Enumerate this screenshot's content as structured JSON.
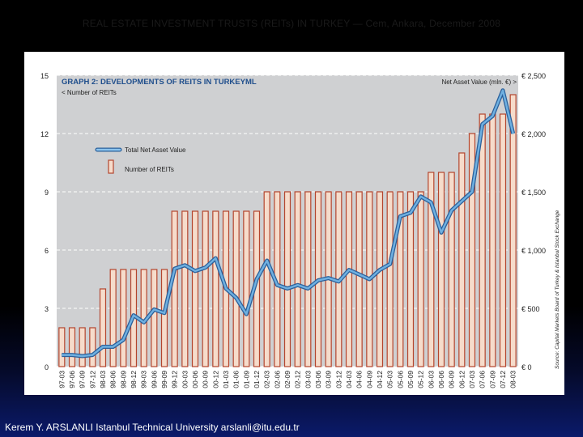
{
  "slide": {
    "header": "REAL ESTATE INVESTMENT TRUSTS (REITs) IN TURKEY — Cem, Ankara, December 2008",
    "footer": "Kerem Y. ARSLANLI Istanbul Technical University arslanli@itu.edu.tr"
  },
  "colors": {
    "bar_fill": "#f6dccb",
    "bar_stroke": "#b4452e",
    "line": "#6fb0e0",
    "line_outline": "#2a5f9a",
    "plot_bg": "#cfd0d2",
    "title": "#1f4e8c"
  },
  "chart_data": {
    "type": "bar",
    "title": "GRAPH 2: DEVELOPMENTS OF REITS IN TURKEYML",
    "left_axis_label": "< Number of REITs",
    "right_axis_label": "Net Asset Value (mln. €) >",
    "source": "Source: Capital Markets Board of Turkey & Istanbul Stock Exchange",
    "left_axis": {
      "min": 0,
      "max": 15,
      "ticks": [
        "0",
        "3",
        "6",
        "9",
        "12",
        "15"
      ]
    },
    "right_axis": {
      "min": 0,
      "max": 2500,
      "ticks": [
        "€ 0",
        "€ 500",
        "€ 1,000",
        "€ 1,500",
        "€ 2,000",
        "€ 2,500"
      ]
    },
    "legend": [
      {
        "name": "Total Net Asset Value",
        "kind": "line"
      },
      {
        "name": "Number of REITs",
        "kind": "bar"
      }
    ],
    "categories": [
      "97-03",
      "97-06",
      "97-09",
      "97-12",
      "98-03",
      "98-06",
      "98-09",
      "98-12",
      "99-03",
      "99-06",
      "99-09",
      "99-12",
      "00-03",
      "00-06",
      "00-09",
      "00-12",
      "01-03",
      "01-06",
      "01-09",
      "01-12",
      "02-03",
      "02-06",
      "02-09",
      "02-12",
      "03-03",
      "03-06",
      "03-09",
      "03-12",
      "04-03",
      "04-06",
      "04-09",
      "04-12",
      "05-03",
      "05-06",
      "05-09",
      "05-12",
      "06-03",
      "06-06",
      "06-09",
      "06-12",
      "07-03",
      "07-06",
      "07-09",
      "07-12",
      "08-03"
    ],
    "series": [
      {
        "name": "Number of REITs",
        "axis": "left",
        "values": [
          2,
          2,
          2,
          2,
          4,
          5,
          5,
          5,
          5,
          5,
          5,
          8,
          8,
          8,
          8,
          8,
          8,
          8,
          8,
          8,
          9,
          9,
          9,
          9,
          9,
          9,
          9,
          9,
          9,
          9,
          9,
          9,
          9,
          9,
          9,
          9,
          10,
          10,
          10,
          11,
          12,
          13,
          13,
          13,
          14
        ]
      },
      {
        "name": "Total Net Asset Value",
        "axis": "right",
        "values": [
          100,
          100,
          90,
          100,
          170,
          170,
          230,
          440,
          380,
          490,
          460,
          840,
          870,
          820,
          850,
          930,
          670,
          590,
          450,
          750,
          910,
          700,
          670,
          700,
          670,
          740,
          760,
          730,
          830,
          790,
          750,
          830,
          880,
          1290,
          1320,
          1460,
          1410,
          1150,
          1340,
          1420,
          1500,
          2080,
          2150,
          2370,
          2000
        ]
      }
    ]
  }
}
